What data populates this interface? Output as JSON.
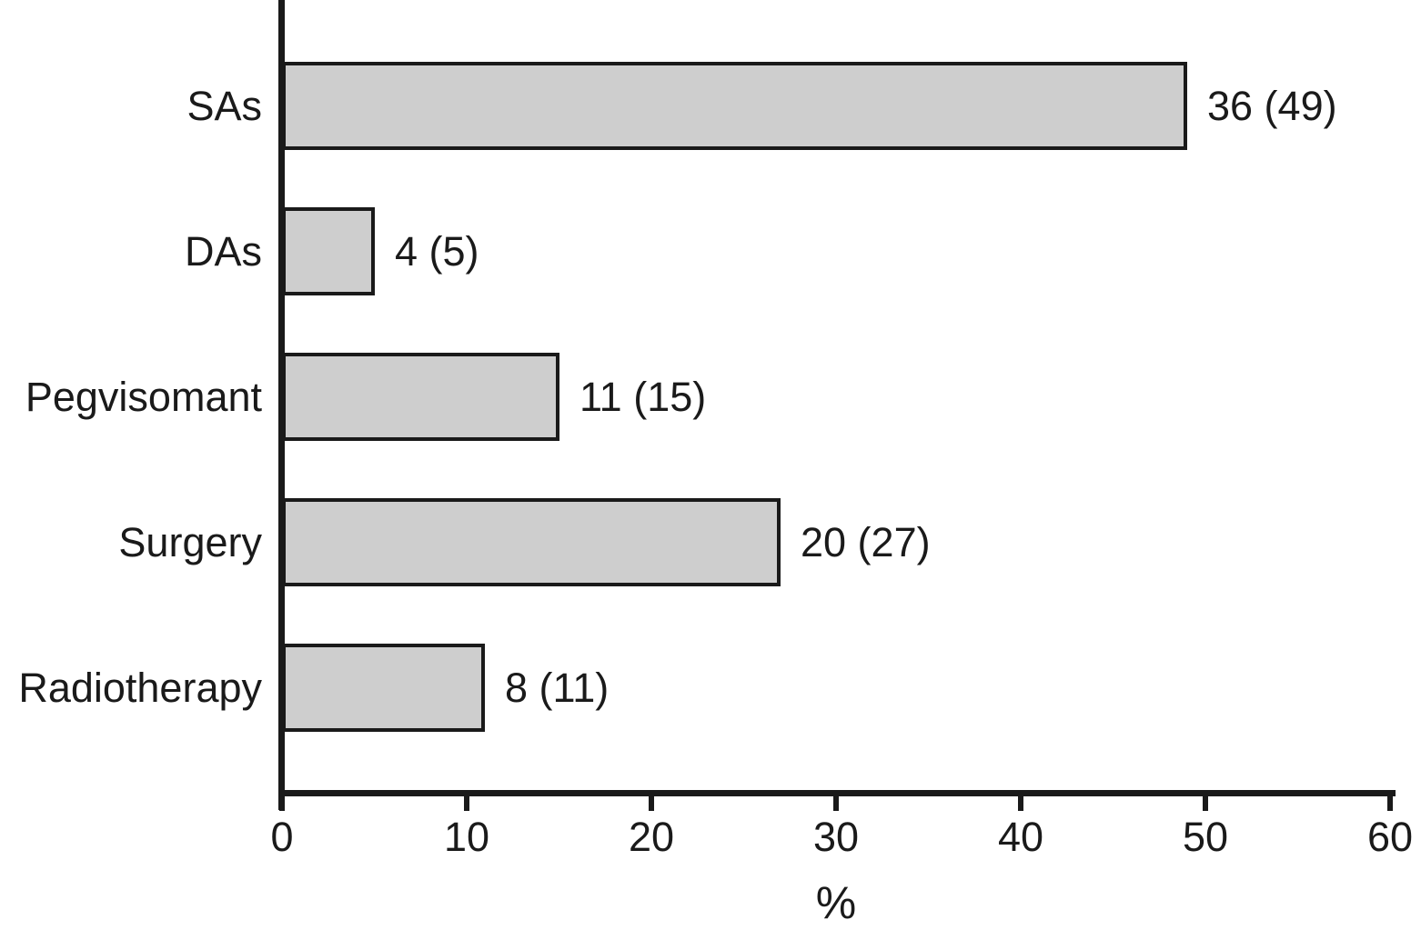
{
  "chart_data": {
    "type": "bar",
    "orientation": "horizontal",
    "title": "",
    "xlabel": "%",
    "ylabel": "",
    "xlim": [
      0,
      60
    ],
    "xticks": [
      0,
      10,
      20,
      30,
      40,
      50,
      60
    ],
    "grid": false,
    "legend": null,
    "categories": [
      "SAs",
      "DAs",
      "Pegvisomant",
      "Surgery",
      "Radiotherapy"
    ],
    "values": [
      49,
      5,
      15,
      27,
      11
    ],
    "counts": [
      36,
      4,
      11,
      20,
      8
    ],
    "bar_labels": [
      "36 (49)",
      "4 (5)",
      "11 (15)",
      "20 (27)",
      "8 (11)"
    ],
    "colors": {
      "bar_fill": "#cecece",
      "bar_border": "#1a1a1a",
      "axis": "#1a1a1a",
      "text": "#1a1a1a",
      "background": "#ffffff"
    }
  }
}
